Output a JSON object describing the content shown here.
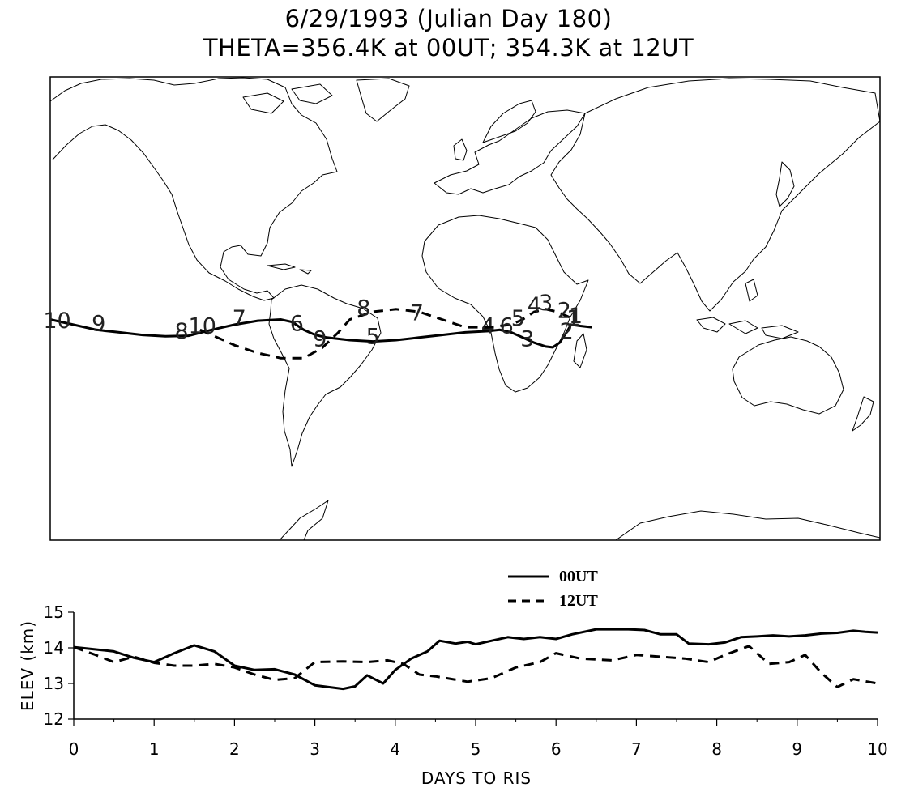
{
  "title": "6/29/1993 (Julian Day 180)",
  "subtitle": "THETA=356.4K at 00UT; 354.3K at 12UT",
  "chart_data": [
    {
      "type": "map-trajectory",
      "series": [
        {
          "name": "00UT",
          "style": "solid",
          "day_labels": [
            {
              "day": "10",
              "lon": -177,
              "lat": -4
            },
            {
              "day": "9",
              "lon": -159,
              "lat": -5
            },
            {
              "day": "8",
              "lon": -123,
              "lat": -8
            },
            {
              "day": "7",
              "lon": -98,
              "lat": -3
            },
            {
              "day": "6",
              "lon": -73,
              "lat": -5
            },
            {
              "day": "5",
              "lon": -40,
              "lat": -10
            },
            {
              "day": "4",
              "lon": 10,
              "lat": -6
            },
            {
              "day": "3",
              "lon": 27,
              "lat": -11
            },
            {
              "day": "2",
              "lon": 44,
              "lat": -8
            },
            {
              "day": "1",
              "lon": 47,
              "lat": -3
            }
          ]
        },
        {
          "name": "12UT",
          "style": "dashed",
          "day_labels": [
            {
              "day": "10",
              "lon": -114,
              "lat": -6
            },
            {
              "day": "9",
              "lon": -63,
              "lat": -11
            },
            {
              "day": "8",
              "lon": -44,
              "lat": 1
            },
            {
              "day": "7",
              "lon": -21,
              "lat": -1
            },
            {
              "day": "6",
              "lon": 18,
              "lat": -6
            },
            {
              "day": "5",
              "lon": 23,
              "lat": -3
            },
            {
              "day": "4",
              "lon": 30,
              "lat": 2
            },
            {
              "day": "3",
              "lon": 35,
              "lat": 3
            },
            {
              "day": "2",
              "lon": 43,
              "lat": 0
            },
            {
              "day": "1",
              "lon": 48,
              "lat": -2
            }
          ]
        }
      ],
      "trajectories": {
        "00UT": [
          [
            -180,
            -3
          ],
          [
            -170,
            -5
          ],
          [
            -160,
            -7
          ],
          [
            -150,
            -8
          ],
          [
            -140,
            -9
          ],
          [
            -130,
            -9.5
          ],
          [
            -120,
            -9.3
          ],
          [
            -110,
            -7
          ],
          [
            -100,
            -5
          ],
          [
            -90,
            -3.5
          ],
          [
            -80,
            -3
          ],
          [
            -75,
            -4
          ],
          [
            -70,
            -7
          ],
          [
            -65,
            -9
          ],
          [
            -60,
            -10
          ],
          [
            -50,
            -11
          ],
          [
            -40,
            -11.5
          ],
          [
            -30,
            -11
          ],
          [
            -20,
            -10
          ],
          [
            -10,
            -9
          ],
          [
            0,
            -8
          ],
          [
            10,
            -7.5
          ],
          [
            15,
            -7
          ],
          [
            20,
            -8
          ],
          [
            25,
            -10
          ],
          [
            30,
            -12
          ],
          [
            35,
            -13.5
          ],
          [
            38,
            -13.8
          ],
          [
            41,
            -12
          ],
          [
            44,
            -8
          ],
          [
            46,
            -5
          ],
          [
            50,
            -5.5
          ],
          [
            55,
            -6
          ]
        ],
        "12UT": [
          [
            -115,
            -7
          ],
          [
            -110,
            -9
          ],
          [
            -100,
            -13
          ],
          [
            -90,
            -16
          ],
          [
            -80,
            -18
          ],
          [
            -70,
            -18
          ],
          [
            -62,
            -14
          ],
          [
            -55,
            -8
          ],
          [
            -50,
            -3
          ],
          [
            -40,
            0
          ],
          [
            -30,
            1
          ],
          [
            -20,
            0
          ],
          [
            -10,
            -3
          ],
          [
            0,
            -6
          ],
          [
            10,
            -6
          ],
          [
            20,
            -5
          ],
          [
            25,
            -3
          ],
          [
            30,
            0
          ],
          [
            35,
            1
          ],
          [
            40,
            0
          ],
          [
            45,
            -2
          ],
          [
            48,
            -3
          ]
        ]
      }
    },
    {
      "type": "line",
      "xlabel": "DAYS TO RIS",
      "ylabel": "ELEV (km)",
      "xlim": [
        0,
        10
      ],
      "ylim": [
        12,
        15
      ],
      "xticks": [
        "0",
        "1",
        "2",
        "3",
        "4",
        "5",
        "6",
        "7",
        "8",
        "9",
        "10"
      ],
      "yticks": [
        "12",
        "13",
        "14",
        "15"
      ],
      "legend": [
        {
          "label": "00UT",
          "style": "solid"
        },
        {
          "label": "12UT",
          "style": "dashed"
        }
      ],
      "series": [
        {
          "name": "00UT",
          "style": "solid",
          "x": [
            0,
            0.3,
            0.5,
            0.75,
            1.0,
            1.25,
            1.5,
            1.75,
            2.0,
            2.25,
            2.5,
            2.75,
            3.0,
            3.35,
            3.5,
            3.65,
            3.85,
            4.0,
            4.2,
            4.4,
            4.55,
            4.75,
            4.9,
            5.0,
            5.2,
            5.4,
            5.6,
            5.8,
            6.0,
            6.2,
            6.5,
            6.9,
            7.1,
            7.3,
            7.5,
            7.65,
            7.9,
            8.1,
            8.3,
            8.5,
            8.7,
            8.9,
            9.1,
            9.3,
            9.5,
            9.7,
            9.85,
            10.0
          ],
          "y": [
            14.02,
            13.95,
            13.9,
            13.72,
            13.6,
            13.85,
            14.07,
            13.9,
            13.5,
            13.38,
            13.4,
            13.25,
            12.95,
            12.85,
            12.92,
            13.23,
            13.0,
            13.38,
            13.7,
            13.9,
            14.2,
            14.12,
            14.17,
            14.1,
            14.2,
            14.3,
            14.25,
            14.3,
            14.25,
            14.38,
            14.52,
            14.52,
            14.5,
            14.38,
            14.38,
            14.12,
            14.1,
            14.15,
            14.3,
            14.32,
            14.35,
            14.32,
            14.35,
            14.4,
            14.42,
            14.48,
            14.45,
            14.43
          ]
        },
        {
          "name": "12UT",
          "style": "dashed",
          "x": [
            0,
            0.25,
            0.5,
            0.75,
            1.0,
            1.25,
            1.5,
            1.75,
            2.0,
            2.25,
            2.5,
            2.75,
            3.0,
            3.35,
            3.65,
            3.9,
            4.1,
            4.3,
            4.5,
            4.9,
            5.2,
            5.5,
            5.8,
            6.0,
            6.3,
            6.7,
            7.0,
            7.3,
            7.6,
            7.9,
            8.1,
            8.4,
            8.65,
            8.9,
            9.1,
            9.3,
            9.5,
            9.7,
            10.0
          ],
          "y": [
            14.02,
            13.82,
            13.6,
            13.75,
            13.58,
            13.5,
            13.5,
            13.55,
            13.45,
            13.25,
            13.1,
            13.15,
            13.6,
            13.62,
            13.6,
            13.65,
            13.55,
            13.25,
            13.2,
            13.05,
            13.15,
            13.45,
            13.6,
            13.85,
            13.7,
            13.65,
            13.8,
            13.75,
            13.7,
            13.6,
            13.8,
            14.05,
            13.55,
            13.6,
            13.8,
            13.3,
            12.9,
            13.12,
            13.0
          ]
        }
      ]
    }
  ]
}
